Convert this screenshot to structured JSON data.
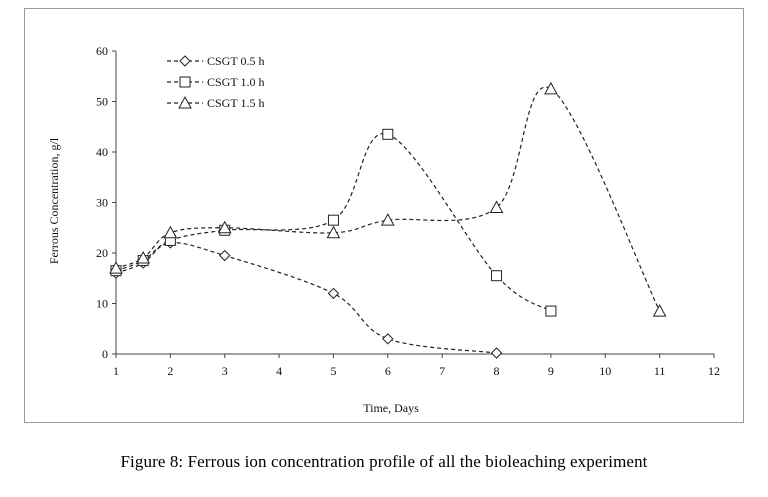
{
  "chart_data": {
    "type": "line",
    "xlabel": "Time, Days",
    "ylabel": "Ferrous Concentration, g/l",
    "xlim": [
      1,
      12
    ],
    "ylim": [
      0,
      60
    ],
    "xticks": [
      1,
      2,
      3,
      4,
      5,
      6,
      7,
      8,
      9,
      10,
      11,
      12
    ],
    "yticks": [
      0,
      10,
      20,
      30,
      40,
      50,
      60
    ],
    "grid": false,
    "legend_position": "top-left",
    "series": [
      {
        "name": "CSGT 0.5 h",
        "marker": "diamond",
        "x": [
          1,
          1.5,
          2,
          3,
          5,
          6,
          8
        ],
        "y": [
          16,
          18,
          22,
          19.5,
          12,
          3,
          0.2
        ]
      },
      {
        "name": "CSGT 1.0 h",
        "marker": "square",
        "x": [
          1,
          1.5,
          2,
          3,
          5,
          6,
          8,
          9
        ],
        "y": [
          16.5,
          18.5,
          22.5,
          24.5,
          26.5,
          43.5,
          15.5,
          8.5
        ]
      },
      {
        "name": "CSGT 1.5 h",
        "marker": "triangle",
        "x": [
          1,
          1.5,
          2,
          3,
          5,
          6,
          8,
          9,
          11
        ],
        "y": [
          17,
          19,
          24,
          25,
          24,
          26.5,
          29,
          52.5,
          8.5
        ]
      }
    ]
  },
  "caption": "Figure 8: Ferrous ion concentration profile of all the bioleaching experiment"
}
